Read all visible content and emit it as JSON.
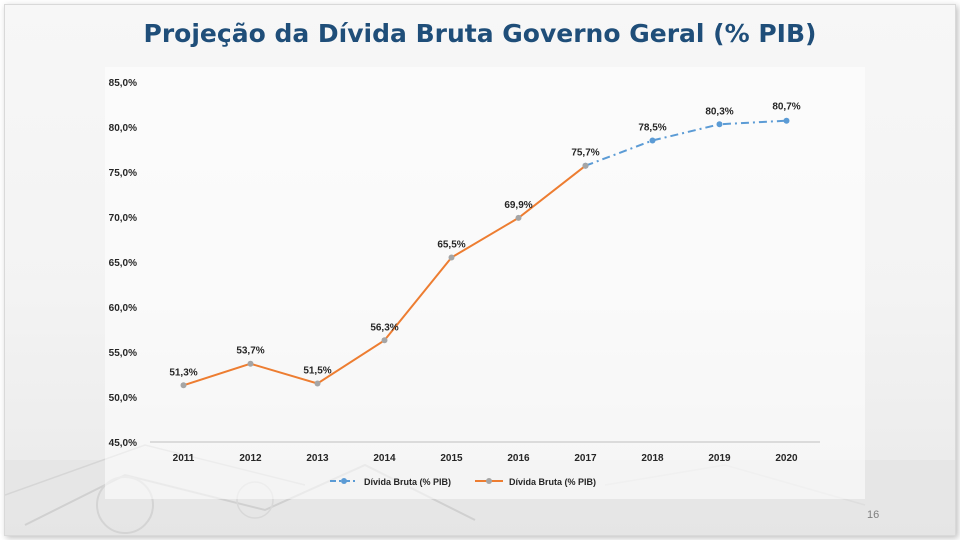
{
  "slide": {
    "title": "Projeção da Dívida Bruta Governo Geral (% PIB)",
    "page_number": "16"
  },
  "colors": {
    "title": "#1f4e79",
    "actual_line": "#ed7d31",
    "projection_line": "#5b9bd5",
    "actual_marker": "#a5a5a5",
    "projection_marker": "#5b9bd5"
  },
  "chart_data": {
    "type": "line",
    "title": "Projeção da Dívida Bruta Governo Geral (% PIB)",
    "xlabel": "",
    "ylabel": "",
    "categories": [
      "2011",
      "2012",
      "2013",
      "2014",
      "2015",
      "2016",
      "2017",
      "2018",
      "2019",
      "2020"
    ],
    "ylim": [
      45,
      85
    ],
    "yticks": [
      "45,0%",
      "50,0%",
      "55,0%",
      "60,0%",
      "65,0%",
      "70,0%",
      "75,0%",
      "80,0%",
      "85,0%"
    ],
    "ytick_values": [
      45,
      50,
      55,
      60,
      65,
      70,
      75,
      80,
      85
    ],
    "grid": false,
    "legend_position": "bottom",
    "series": [
      {
        "name": "Dívida Bruta (% PIB)",
        "style": "dash-dot",
        "values": [
          null,
          null,
          null,
          null,
          null,
          null,
          75.7,
          78.5,
          80.3,
          80.7
        ]
      },
      {
        "name": "Dívida Bruta (% PIB)",
        "style": "solid",
        "values": [
          51.3,
          53.7,
          51.5,
          56.3,
          65.5,
          69.9,
          75.7,
          null,
          null,
          null
        ]
      }
    ],
    "data_labels": [
      "51,3%",
      "53,7%",
      "51,5%",
      "56,3%",
      "65,5%",
      "69,9%",
      "75,7%",
      "78,5%",
      "80,3%",
      "80,7%"
    ]
  }
}
